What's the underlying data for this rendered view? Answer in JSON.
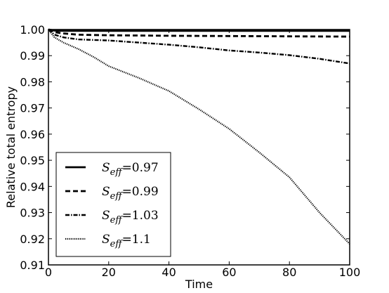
{
  "chart_data": {
    "type": "line",
    "title": "",
    "xlabel": "Time",
    "ylabel": "Relative total entropy",
    "xlim": [
      0,
      100
    ],
    "ylim": [
      0.91,
      1.0
    ],
    "xticks": [
      0,
      20,
      40,
      60,
      80,
      100
    ],
    "yticks": [
      0.91,
      0.92,
      0.93,
      0.94,
      0.95,
      0.96,
      0.97,
      0.98,
      0.99,
      1.0
    ],
    "xtick_labels": [
      "0",
      "20",
      "40",
      "60",
      "80",
      "100"
    ],
    "ytick_labels": [
      "0.91",
      "0.92",
      "0.93",
      "0.94",
      "0.95",
      "0.96",
      "0.97",
      "0.98",
      "0.99",
      "1.00"
    ],
    "grid": false,
    "legend_position": "lower-left",
    "series": [
      {
        "name": "S_eff=0.97",
        "legend_label": "S",
        "legend_sub": "eff",
        "legend_value": "=0.97",
        "style": "solid",
        "x": [
          0,
          2,
          5,
          10,
          20,
          40,
          60,
          80,
          100
        ],
        "y": [
          1.0,
          0.9996,
          0.9995,
          0.9995,
          0.9995,
          0.9995,
          0.9995,
          0.9995,
          0.9995
        ]
      },
      {
        "name": "S_eff=0.99",
        "legend_label": "S",
        "legend_sub": "eff",
        "legend_value": "=0.99",
        "style": "dashed",
        "x": [
          0,
          2,
          5,
          10,
          20,
          40,
          60,
          80,
          100
        ],
        "y": [
          1.0,
          0.999,
          0.9985,
          0.998,
          0.9978,
          0.9976,
          0.9975,
          0.9974,
          0.9973
        ]
      },
      {
        "name": "S_eff=1.03",
        "legend_label": "S",
        "legend_sub": "eff",
        "legend_value": "=1.03",
        "style": "dashdot",
        "x": [
          0,
          2,
          5,
          10,
          20,
          30,
          40,
          50,
          60,
          70,
          80,
          90,
          100
        ],
        "y": [
          1.0,
          0.998,
          0.997,
          0.9962,
          0.9958,
          0.995,
          0.9942,
          0.9932,
          0.992,
          0.9912,
          0.9902,
          0.9888,
          0.987
        ]
      },
      {
        "name": "S_eff=1.1",
        "legend_label": "S",
        "legend_sub": "eff",
        "legend_value": "=1.1",
        "style": "dotted",
        "x": [
          0,
          2,
          5,
          10,
          15,
          20,
          30,
          40,
          50,
          60,
          70,
          80,
          90,
          100
        ],
        "y": [
          1.0,
          0.997,
          0.995,
          0.9925,
          0.9895,
          0.986,
          0.9815,
          0.9765,
          0.9695,
          0.962,
          0.953,
          0.9435,
          0.93,
          0.918
        ]
      }
    ]
  }
}
